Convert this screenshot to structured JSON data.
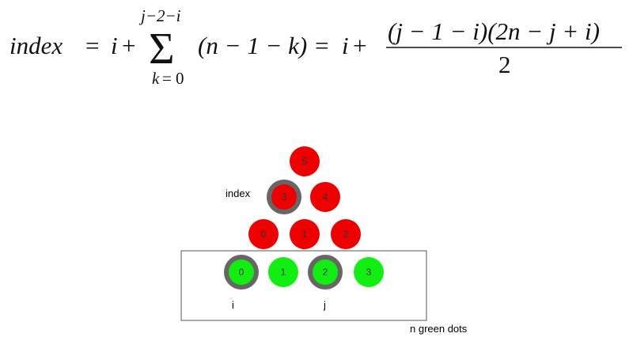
{
  "formula": {
    "lhs": "index",
    "eq": "=",
    "i": "i",
    "plus": "+",
    "sum_upper": "j−2−i",
    "sum_lower_var": "k",
    "sum_lower_eq": "=",
    "sum_lower_val": "0",
    "sum_body": "(n − 1 − k)",
    "numerator": "(j − 1 − i)(2n − j + i)",
    "denominator": "2"
  },
  "diagram": {
    "index_label": "index",
    "i_label": "i",
    "j_label": "j",
    "box_caption": "n green dots",
    "red_rows": [
      [
        "5"
      ],
      [
        "3",
        "4"
      ],
      [
        "0",
        "1",
        "2"
      ]
    ],
    "green_dots": [
      "0",
      "1",
      "2",
      "3"
    ],
    "highlighted_red": "3",
    "highlighted_green": [
      "0",
      "2"
    ],
    "colors": {
      "red": "#ee0000",
      "green": "#11ee11",
      "ring": "#666666",
      "box_border": "#555555"
    }
  }
}
